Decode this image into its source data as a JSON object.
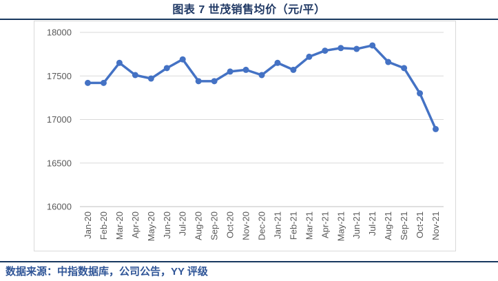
{
  "header": {
    "title": "图表 7  世茂销售均价（元/平）"
  },
  "footer": {
    "source": "数据来源：中指数据库，公司公告，YY 评级"
  },
  "colors": {
    "line": "#4472C4",
    "marker": "#4472C4",
    "title_text": "#1F3864",
    "source_text": "#2F5597",
    "divider": "#17375E",
    "gridline": "#D9D9D9",
    "axis_line": "#BFBFBF",
    "axis_text": "#595959",
    "chart_border": "#D9D9D9"
  },
  "chart_data": {
    "type": "line",
    "title": "图表 7  世茂销售均价（元/平）",
    "xlabel": "",
    "ylabel": "",
    "categories": [
      "Jan-20",
      "Feb-20",
      "Mar-20",
      "Apr-20",
      "May-20",
      "Jun-20",
      "Jul-20",
      "Aug-20",
      "Sep-20",
      "Oct-20",
      "Nov-20",
      "Dec-20",
      "Jan-21",
      "Feb-21",
      "Mar-21",
      "Apr-21",
      "May-21",
      "Jun-21",
      "Jul-21",
      "Aug-21",
      "Sep-21",
      "Oct-21",
      "Nov-21"
    ],
    "series": [
      {
        "name": "世茂销售均价",
        "values": [
          17420,
          17420,
          17650,
          17510,
          17470,
          17590,
          17690,
          17440,
          17440,
          17550,
          17570,
          17510,
          17650,
          17570,
          17720,
          17790,
          17820,
          17810,
          17850,
          17660,
          17590,
          17300,
          16890
        ]
      }
    ],
    "ylim": [
      16000,
      18000
    ],
    "yticks": [
      16000,
      16500,
      17000,
      17500,
      18000
    ],
    "grid": "horizontal",
    "legend": "none",
    "marker": "circle"
  }
}
